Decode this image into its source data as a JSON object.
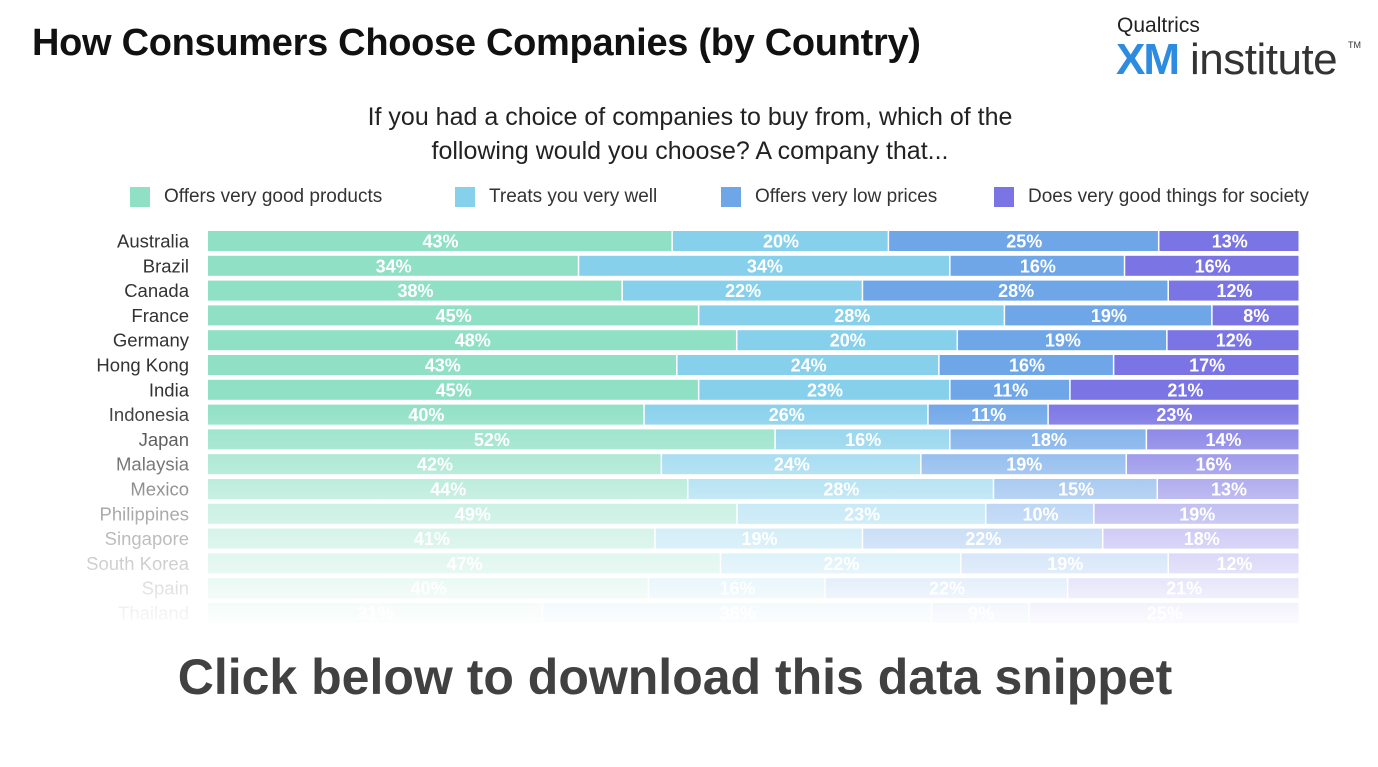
{
  "header": {
    "title": "How Consumers Choose Companies (by Country)"
  },
  "logo": {
    "brand_small": "Qualtrics",
    "brand_xm": "XM",
    "brand_institute": "institute",
    "trademark": "TM"
  },
  "subtitle": {
    "line1": "If you had a choice of companies to buy from, which of the",
    "line2": "following would you choose? A company that..."
  },
  "cta": {
    "text": "Click below to download this data snippet"
  },
  "colors": {
    "products": "#8fe0c4",
    "treats": "#87d0ec",
    "prices": "#6ea6e8",
    "society": "#7a74e4"
  },
  "chart_data": {
    "type": "bar",
    "orientation": "horizontal",
    "stacked": true,
    "percent_stacked": true,
    "legend_position": "top",
    "categories": [
      "Australia",
      "Brazil",
      "Canada",
      "France",
      "Germany",
      "Hong Kong",
      "India",
      "Indonesia",
      "Japan",
      "Malaysia",
      "Mexico",
      "Philippines",
      "Singapore",
      "South Korea",
      "Spain",
      "Thailand"
    ],
    "series": [
      {
        "name": "Offers very good  products",
        "color": "#8fe0c4",
        "values": [
          43,
          34,
          38,
          45,
          48,
          43,
          45,
          40,
          52,
          42,
          44,
          49,
          41,
          47,
          40,
          31
        ]
      },
      {
        "name": "Treats you very well",
        "color": "#87d0ec",
        "values": [
          20,
          34,
          22,
          28,
          20,
          24,
          23,
          26,
          16,
          24,
          28,
          23,
          19,
          22,
          16,
          36
        ]
      },
      {
        "name": "Offers very low prices",
        "color": "#6ea6e8",
        "values": [
          25,
          16,
          28,
          19,
          19,
          16,
          11,
          11,
          18,
          19,
          15,
          10,
          22,
          19,
          22,
          9
        ]
      },
      {
        "name": "Does very good things for society",
        "color": "#7a74e4",
        "values": [
          13,
          16,
          12,
          8,
          12,
          17,
          21,
          23,
          14,
          16,
          13,
          19,
          18,
          12,
          21,
          25
        ]
      }
    ]
  }
}
